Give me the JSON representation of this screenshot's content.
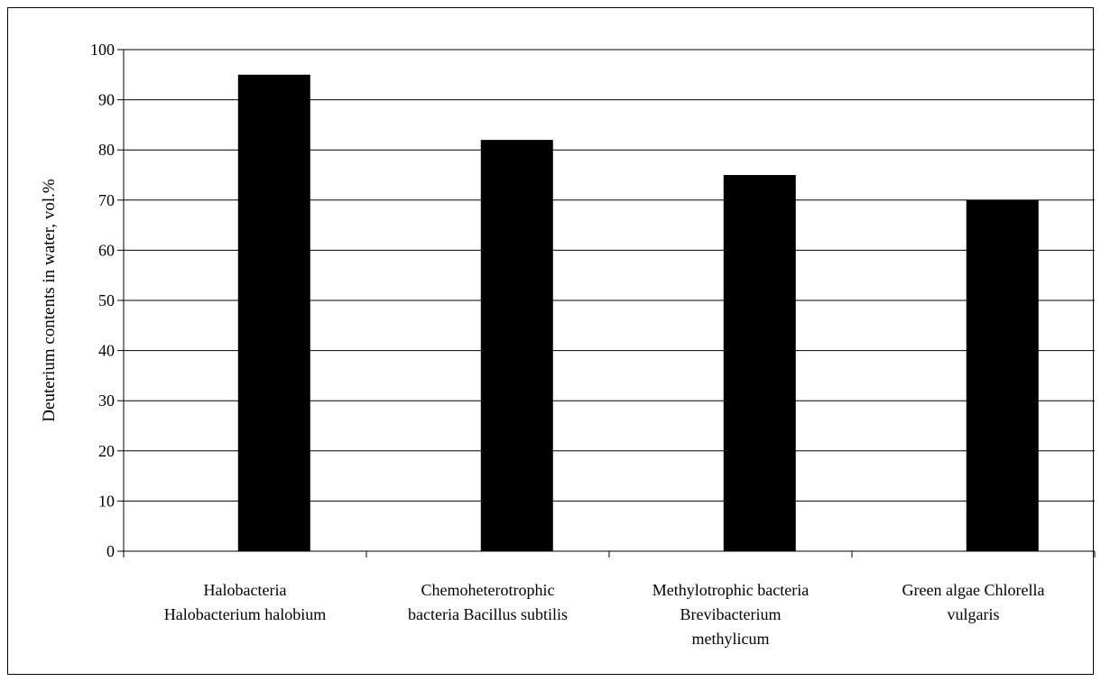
{
  "chart_data": {
    "type": "bar",
    "title": "",
    "xlabel": "",
    "ylabel": "Deuterium contents in water, vol.%",
    "ylim": [
      0,
      100
    ],
    "yticks": [
      0,
      10,
      20,
      30,
      40,
      50,
      60,
      70,
      80,
      90,
      100
    ],
    "grid": true,
    "categories": [
      [
        "Halobacteria",
        "Halobacterium halobium"
      ],
      [
        "Chemoheterotrophic",
        "bacteria Bacillus subtilis"
      ],
      [
        "Methylotrophic bacteria",
        "Brevibacterium",
        "methylicum"
      ],
      [
        "Green algae Chlorella",
        "vulgaris"
      ]
    ],
    "values": [
      95,
      82,
      75,
      70
    ],
    "bar_color": "#000000"
  }
}
